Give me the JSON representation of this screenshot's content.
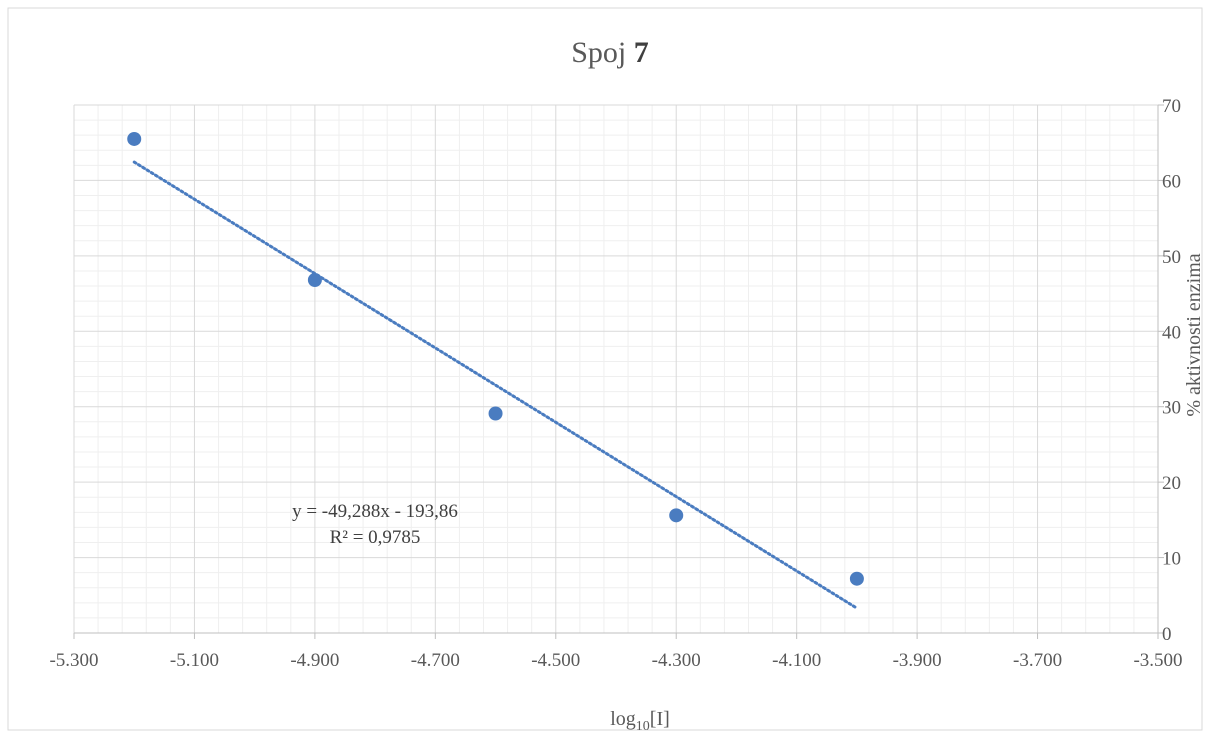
{
  "chart_data": {
    "type": "scatter",
    "title_text": "Spoj ",
    "title_bold": "7",
    "xlabel_base": "log",
    "xlabel_sub": "10",
    "xlabel_rest": "[I]",
    "ylabel": "%  aktivnosti enzima",
    "xlim": [
      -5.3,
      -3.5
    ],
    "ylim": [
      0,
      70
    ],
    "x_ticks": [
      -5.3,
      -5.1,
      -4.9,
      -4.7,
      -4.5,
      -4.3,
      -4.1,
      -3.9,
      -3.7,
      -3.5
    ],
    "x_tick_labels": [
      "-5.300",
      "-5.100",
      "-4.900",
      "-4.700",
      "-4.500",
      "-4.300",
      "-4.100",
      "-3.900",
      "-3.700",
      "-3.500"
    ],
    "y_ticks": [
      0,
      10,
      20,
      30,
      40,
      50,
      60,
      70
    ],
    "y_tick_labels": [
      "0",
      "10",
      "20",
      "30",
      "40",
      "50",
      "60",
      "70"
    ],
    "grid": "major and minor",
    "y_axis_position": "right",
    "points": [
      {
        "x": -5.2,
        "y": 65.5
      },
      {
        "x": -4.9,
        "y": 46.8
      },
      {
        "x": -4.6,
        "y": 29.1
      },
      {
        "x": -4.3,
        "y": 15.6
      },
      {
        "x": -4.0,
        "y": 7.2
      }
    ],
    "trendline": {
      "type": "linear",
      "slope": -49.288,
      "intercept": -193.86,
      "x_range": [
        -5.2,
        -4.0
      ],
      "equation_label": "y = -49,288x - 193,86",
      "r2_label": "R² = 0,9785"
    },
    "colors": {
      "marker": "#4a7cc0",
      "trendline": "#4a7cc0",
      "major_grid": "#d9d9d9",
      "minor_grid": "#efefef",
      "axis": "#bfbfbf",
      "text": "#595959",
      "border": "#d9d9d9"
    }
  }
}
